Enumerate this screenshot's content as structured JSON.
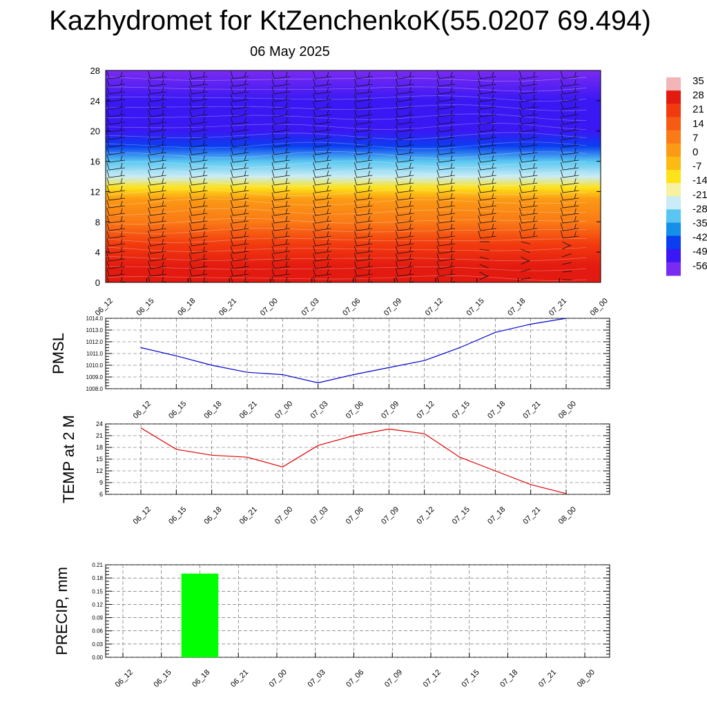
{
  "page": {
    "title": "Kazhydromet for KtZenchenkoK(55.0207 69.494)",
    "subtitle": "06 May 2025"
  },
  "chart_data": [
    {
      "type": "heatmap",
      "title": "",
      "xlabel": "",
      "ylabel": "",
      "x_ticks": [
        "06_12",
        "06_15",
        "06_18",
        "06_21",
        "07_00",
        "07_03",
        "07_06",
        "07_09",
        "07_12",
        "07_15",
        "07_18",
        "07_21",
        "08_00"
      ],
      "y_ticks": [
        0,
        4,
        8,
        12,
        16,
        20,
        24,
        28
      ],
      "ylim": [
        0,
        28
      ],
      "colorbar_labels": [
        "35",
        "28",
        "21",
        "14",
        "7",
        "0",
        "-7",
        "-14",
        "-21",
        "-28",
        "-35",
        "-42",
        "-49",
        "-56"
      ],
      "colorbar_colors": [
        "#f2b6b6",
        "#e31a10",
        "#f23a0f",
        "#f65a13",
        "#fa7a16",
        "#fb9a14",
        "#fcba12",
        "#fee21a",
        "#f7f2a0",
        "#c9ecf6",
        "#58c6f0",
        "#1590e8",
        "#0a3ef0",
        "#3a18f4",
        "#7a2bf2"
      ],
      "field_profile": [
        {
          "level": 0,
          "value": 30
        },
        {
          "level": 2,
          "value": 28
        },
        {
          "level": 5,
          "value": 22
        },
        {
          "level": 8,
          "value": 12
        },
        {
          "level": 11,
          "value": 2
        },
        {
          "level": 12.5,
          "value": -12
        },
        {
          "level": 14,
          "value": -22
        },
        {
          "level": 16,
          "value": -32
        },
        {
          "level": 18,
          "value": -44
        },
        {
          "level": 20,
          "value": -52
        },
        {
          "level": 22,
          "value": -56
        },
        {
          "level": 24,
          "value": -52
        },
        {
          "level": 28,
          "value": -58
        }
      ],
      "wind_barbs": true
    },
    {
      "type": "line",
      "ylabel": "PMSL",
      "categories": [
        "06_12",
        "06_15",
        "06_18",
        "06_21",
        "07_00",
        "07_03",
        "07_06",
        "07_09",
        "07_12",
        "07_15",
        "07_18",
        "07_21",
        "08_00"
      ],
      "values": [
        1011.5,
        1010.8,
        1010.0,
        1009.4,
        1009.2,
        1008.5,
        1009.2,
        1009.8,
        1010.4,
        1011.5,
        1012.8,
        1013.5,
        1014.0
      ],
      "ylim": [
        1008.0,
        1014.0
      ],
      "y_ticks": [
        "1008.0",
        "1009.0",
        "1010.0",
        "1011.0",
        "1012.0",
        "1013.0",
        "1014.0"
      ],
      "color": "#0000cc",
      "grid": true
    },
    {
      "type": "line",
      "ylabel": "TEMP at 2 M",
      "categories": [
        "06_12",
        "06_15",
        "06_18",
        "06_21",
        "07_00",
        "07_03",
        "07_06",
        "07_09",
        "07_12",
        "07_15",
        "07_18",
        "07_21",
        "08_00"
      ],
      "values": [
        23,
        17.5,
        16,
        15.5,
        13,
        18.5,
        21,
        22.7,
        21.5,
        15.5,
        12,
        8.5,
        6.2
      ],
      "ylim": [
        6,
        24
      ],
      "y_ticks": [
        "6",
        "9",
        "12",
        "15",
        "18",
        "21",
        "24"
      ],
      "color": "#e00000",
      "grid": true
    },
    {
      "type": "bar",
      "ylabel": "PRECIP, mm",
      "categories": [
        "06_12",
        "06_15",
        "06_18",
        "06_21",
        "07_00",
        "07_03",
        "07_06",
        "07_09",
        "07_12",
        "07_15",
        "07_18",
        "07_21",
        "08_00"
      ],
      "values": [
        0,
        0,
        0.19,
        0,
        0,
        0,
        0,
        0,
        0,
        0,
        0,
        0,
        0
      ],
      "ylim": [
        0,
        0.21
      ],
      "y_ticks": [
        "0.00",
        "0.03",
        "0.06",
        "0.09",
        "0.12",
        "0.15",
        "0.18",
        "0.21"
      ],
      "color": "#00ff00",
      "grid": true
    }
  ]
}
